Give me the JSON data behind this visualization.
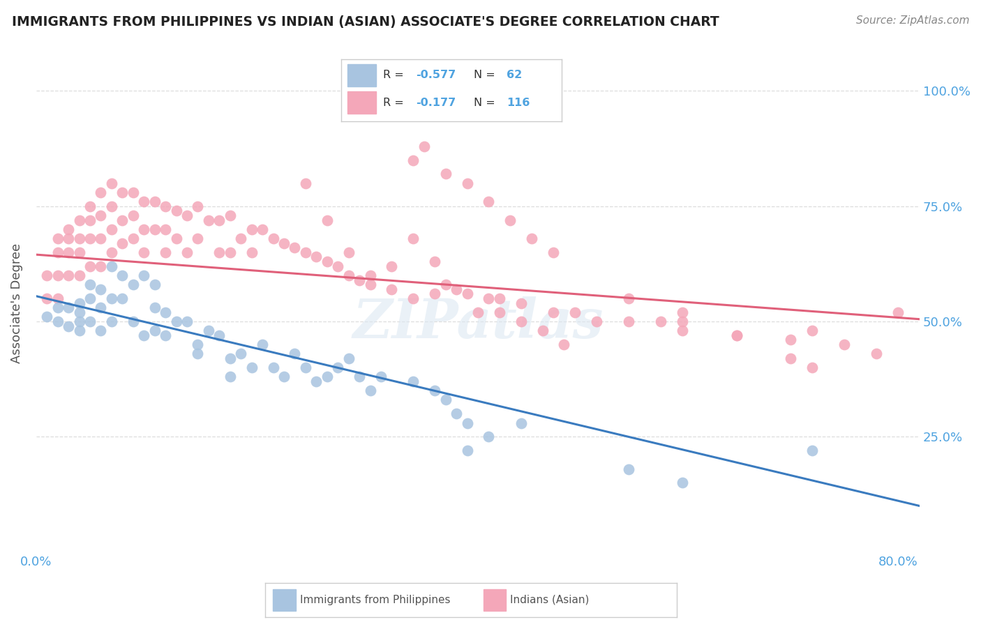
{
  "title": "IMMIGRANTS FROM PHILIPPINES VS INDIAN (ASIAN) ASSOCIATE'S DEGREE CORRELATION CHART",
  "source": "Source: ZipAtlas.com",
  "ylabel": "Associate's Degree",
  "watermark": "ZIPatlas",
  "legend": {
    "phil_r": "-0.577",
    "phil_n": "62",
    "indian_r": "-0.177",
    "indian_n": "116"
  },
  "ytick_labels": [
    "100.0%",
    "75.0%",
    "50.0%",
    "25.0%"
  ],
  "ytick_values": [
    1.0,
    0.75,
    0.5,
    0.25
  ],
  "xtick_positions": [
    0.0,
    0.2,
    0.4,
    0.6,
    0.8
  ],
  "xtick_labels": [
    "0.0%",
    "",
    "",
    "",
    "80.0%"
  ],
  "xlim": [
    0.0,
    0.82
  ],
  "ylim": [
    0.0,
    1.08
  ],
  "phil_color": "#a8c4e0",
  "indian_color": "#f4a7b9",
  "phil_line_color": "#3a7bbf",
  "indian_line_color": "#e0607a",
  "phil_scatter_x": [
    0.01,
    0.02,
    0.02,
    0.03,
    0.03,
    0.04,
    0.04,
    0.04,
    0.04,
    0.05,
    0.05,
    0.05,
    0.06,
    0.06,
    0.06,
    0.07,
    0.07,
    0.07,
    0.08,
    0.08,
    0.09,
    0.09,
    0.1,
    0.1,
    0.11,
    0.11,
    0.11,
    0.12,
    0.12,
    0.13,
    0.14,
    0.15,
    0.15,
    0.16,
    0.17,
    0.18,
    0.18,
    0.19,
    0.2,
    0.21,
    0.22,
    0.23,
    0.24,
    0.25,
    0.26,
    0.27,
    0.28,
    0.29,
    0.3,
    0.31,
    0.32,
    0.35,
    0.37,
    0.38,
    0.39,
    0.4,
    0.42,
    0.45,
    0.4,
    0.55,
    0.6,
    0.72
  ],
  "phil_scatter_y": [
    0.51,
    0.53,
    0.5,
    0.53,
    0.49,
    0.54,
    0.52,
    0.5,
    0.48,
    0.58,
    0.55,
    0.5,
    0.57,
    0.53,
    0.48,
    0.62,
    0.55,
    0.5,
    0.6,
    0.55,
    0.58,
    0.5,
    0.6,
    0.47,
    0.58,
    0.53,
    0.48,
    0.52,
    0.47,
    0.5,
    0.5,
    0.45,
    0.43,
    0.48,
    0.47,
    0.42,
    0.38,
    0.43,
    0.4,
    0.45,
    0.4,
    0.38,
    0.43,
    0.4,
    0.37,
    0.38,
    0.4,
    0.42,
    0.38,
    0.35,
    0.38,
    0.37,
    0.35,
    0.33,
    0.3,
    0.28,
    0.25,
    0.28,
    0.22,
    0.18,
    0.15,
    0.22
  ],
  "indian_scatter_x": [
    0.01,
    0.01,
    0.02,
    0.02,
    0.02,
    0.02,
    0.03,
    0.03,
    0.03,
    0.03,
    0.04,
    0.04,
    0.04,
    0.04,
    0.05,
    0.05,
    0.05,
    0.05,
    0.06,
    0.06,
    0.06,
    0.06,
    0.07,
    0.07,
    0.07,
    0.07,
    0.08,
    0.08,
    0.08,
    0.09,
    0.09,
    0.09,
    0.1,
    0.1,
    0.1,
    0.11,
    0.11,
    0.12,
    0.12,
    0.12,
    0.13,
    0.13,
    0.14,
    0.14,
    0.15,
    0.15,
    0.16,
    0.17,
    0.17,
    0.18,
    0.18,
    0.19,
    0.2,
    0.2,
    0.21,
    0.22,
    0.23,
    0.24,
    0.25,
    0.26,
    0.27,
    0.28,
    0.29,
    0.3,
    0.31,
    0.33,
    0.35,
    0.37,
    0.38,
    0.4,
    0.42,
    0.43,
    0.45,
    0.48,
    0.5,
    0.52,
    0.55,
    0.58,
    0.6,
    0.6,
    0.65,
    0.7,
    0.72,
    0.75,
    0.78,
    0.8,
    0.35,
    0.36,
    0.38,
    0.4,
    0.42,
    0.44,
    0.46,
    0.48,
    0.25,
    0.27,
    0.29,
    0.31,
    0.33,
    0.35,
    0.37,
    0.39,
    0.41,
    0.43,
    0.45,
    0.47,
    0.49,
    0.55,
    0.6,
    0.65,
    0.7,
    0.72
  ],
  "indian_scatter_y": [
    0.6,
    0.55,
    0.68,
    0.65,
    0.6,
    0.55,
    0.7,
    0.68,
    0.65,
    0.6,
    0.72,
    0.68,
    0.65,
    0.6,
    0.75,
    0.72,
    0.68,
    0.62,
    0.78,
    0.73,
    0.68,
    0.62,
    0.8,
    0.75,
    0.7,
    0.65,
    0.78,
    0.72,
    0.67,
    0.78,
    0.73,
    0.68,
    0.76,
    0.7,
    0.65,
    0.76,
    0.7,
    0.75,
    0.7,
    0.65,
    0.74,
    0.68,
    0.73,
    0.65,
    0.75,
    0.68,
    0.72,
    0.72,
    0.65,
    0.73,
    0.65,
    0.68,
    0.7,
    0.65,
    0.7,
    0.68,
    0.67,
    0.66,
    0.65,
    0.64,
    0.63,
    0.62,
    0.6,
    0.59,
    0.58,
    0.57,
    0.55,
    0.56,
    0.58,
    0.56,
    0.55,
    0.55,
    0.54,
    0.52,
    0.52,
    0.5,
    0.5,
    0.5,
    0.52,
    0.48,
    0.47,
    0.46,
    0.48,
    0.45,
    0.43,
    0.52,
    0.85,
    0.88,
    0.82,
    0.8,
    0.76,
    0.72,
    0.68,
    0.65,
    0.8,
    0.72,
    0.65,
    0.6,
    0.62,
    0.68,
    0.63,
    0.57,
    0.52,
    0.52,
    0.5,
    0.48,
    0.45,
    0.55,
    0.5,
    0.47,
    0.42,
    0.4
  ],
  "phil_line": {
    "x0": 0.0,
    "y0": 0.555,
    "x1": 0.82,
    "y1": 0.1
  },
  "indian_line": {
    "x0": 0.0,
    "y0": 0.645,
    "x1": 0.82,
    "y1": 0.505
  },
  "background_color": "#ffffff",
  "grid_color": "#dddddd",
  "label_color": "#4fa3e0"
}
